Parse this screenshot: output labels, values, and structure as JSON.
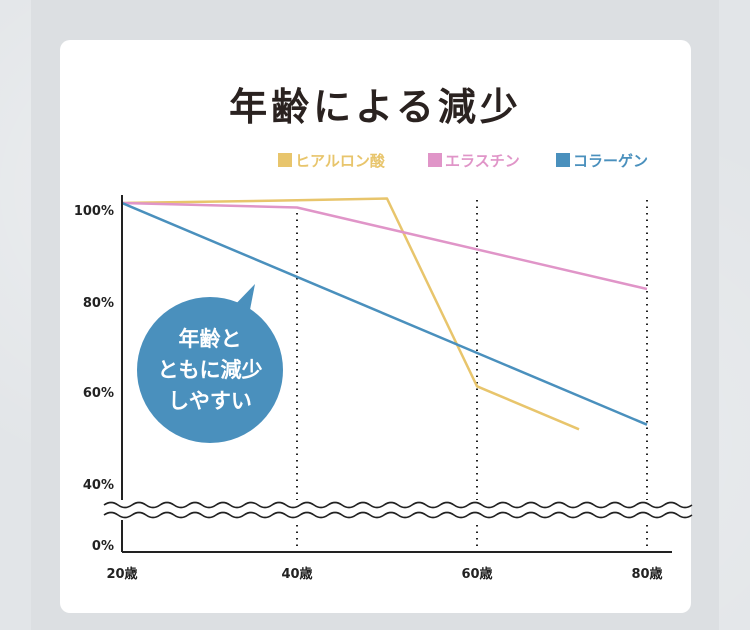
{
  "title": "年齢による減少",
  "colors": {
    "background": "#e2e5e8",
    "card": "#ffffff",
    "hyaluronic": "#e8c56c",
    "elastin": "#e095c8",
    "collagen": "#4a90bd",
    "axis": "#222222"
  },
  "bubble": {
    "lines": [
      "年齢と",
      "ともに減少",
      "しやすい"
    ]
  },
  "chart_data": {
    "type": "line",
    "title": "年齢による減少",
    "xlabel": "",
    "ylabel": "",
    "x_ticks": [
      "20歳",
      "40歳",
      "60歳",
      "80歳"
    ],
    "y_ticks": [
      "100%",
      "80%",
      "60%",
      "40%",
      "0%"
    ],
    "axis_break": "between 40% and 0%",
    "series": [
      {
        "name": "ヒアルロン酸",
        "color": "#e8c56c",
        "points": [
          [
            20,
            100
          ],
          [
            40,
            100.6
          ],
          [
            50,
            101
          ],
          [
            60,
            59.5
          ],
          [
            72,
            50
          ]
        ]
      },
      {
        "name": "エラスチン",
        "color": "#e095c8",
        "points": [
          [
            20,
            100
          ],
          [
            40,
            99
          ],
          [
            80,
            81
          ]
        ]
      },
      {
        "name": "コラーゲン",
        "color": "#4a90bd",
        "points": [
          [
            20,
            100
          ],
          [
            80,
            51
          ]
        ]
      }
    ]
  }
}
